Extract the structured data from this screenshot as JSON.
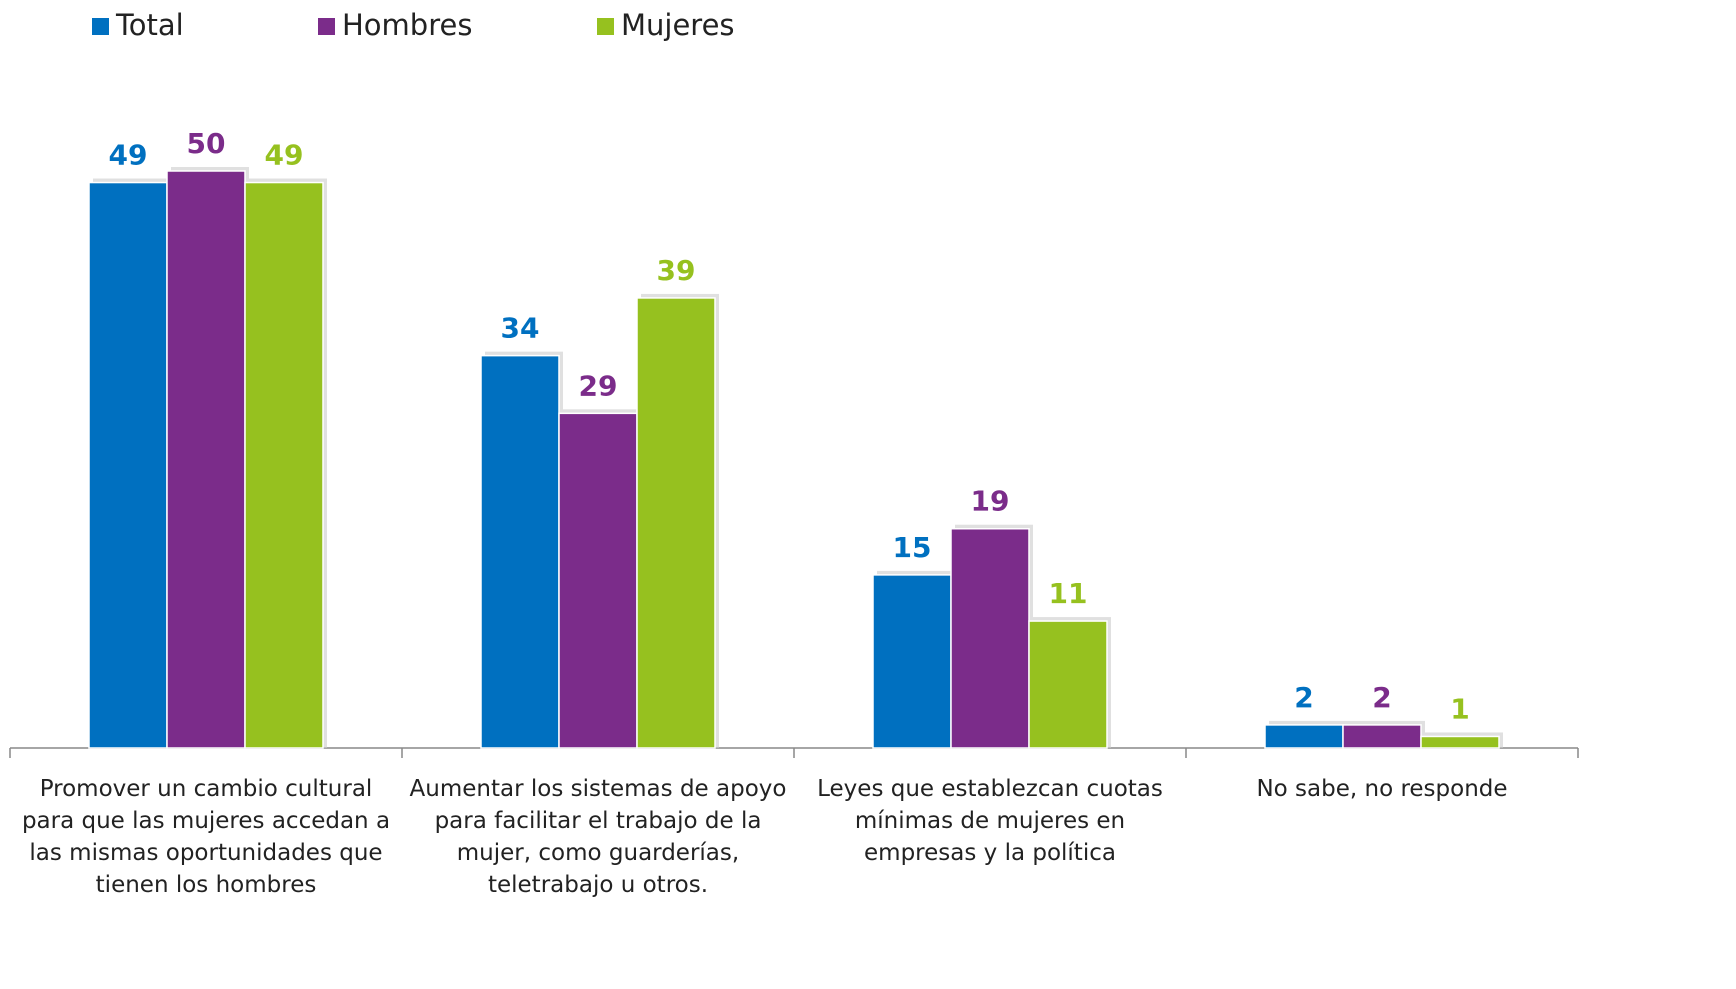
{
  "chart_data": {
    "type": "bar",
    "categories": [
      "Promover un cambio cultural para que las mujeres accedan a las mismas oportunidades que tienen los hombres",
      "Aumentar los sistemas de apoyo para  facilitar el trabajo de la mujer, como guarderías, teletrabajo u otros.",
      "Leyes que establezcan cuotas mínimas de mujeres en empresas y la política",
      "No sabe, no responde"
    ],
    "series": [
      {
        "name": "Total",
        "color": "#0070c0",
        "values": [
          49,
          34,
          15,
          2
        ]
      },
      {
        "name": "Hombres",
        "color": "#7b2c8a",
        "values": [
          50,
          29,
          19,
          2
        ]
      },
      {
        "name": "Mujeres",
        "color": "#96c11f",
        "values": [
          49,
          39,
          11,
          1
        ]
      }
    ],
    "legend": "top"
  }
}
